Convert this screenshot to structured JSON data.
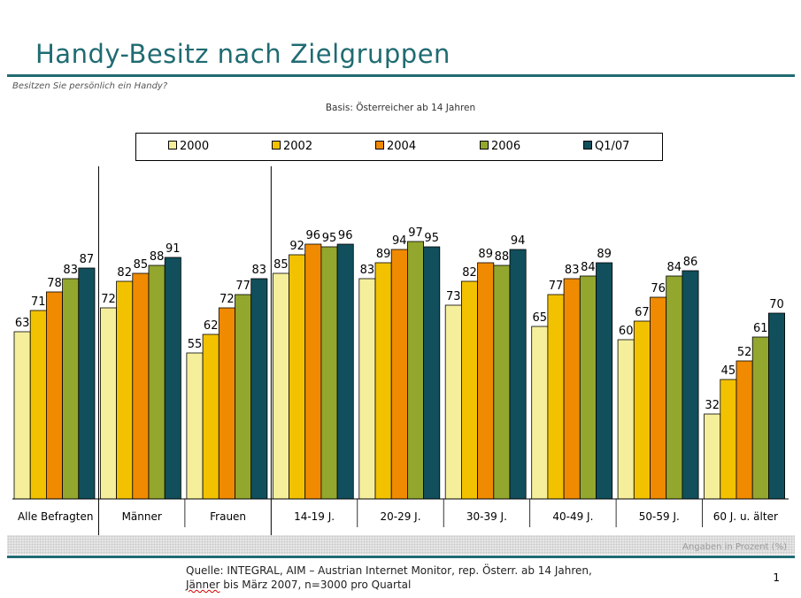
{
  "header": {
    "title": "Handy-Besitz nach Zielgruppen",
    "question": "Besitzen Sie persönlich ein Handy?",
    "basis": "Basis: Österreicher ab 14 Jahren"
  },
  "chart_data": {
    "type": "bar",
    "categories": [
      "Alle Befragten",
      "Männer",
      "Frauen",
      "14-19 J.",
      "20-29 J.",
      "30-39 J.",
      "40-49 J.",
      "50-59 J.",
      "60 J. u. älter"
    ],
    "series": [
      {
        "name": "2000",
        "color": "#f5ef9c",
        "values": [
          63,
          72,
          55,
          85,
          83,
          73,
          65,
          60,
          32
        ]
      },
      {
        "name": "2002",
        "color": "#f2c200",
        "values": [
          71,
          82,
          62,
          92,
          89,
          82,
          77,
          67,
          45
        ]
      },
      {
        "name": "2004",
        "color": "#f08a00",
        "values": [
          78,
          85,
          72,
          96,
          94,
          89,
          83,
          76,
          52
        ]
      },
      {
        "name": "2006",
        "color": "#93a62e",
        "values": [
          83,
          88,
          77,
          95,
          97,
          88,
          84,
          84,
          61
        ]
      },
      {
        "name": "Q1/07",
        "color": "#114f5c",
        "values": [
          87,
          91,
          83,
          96,
          95,
          94,
          89,
          86,
          70
        ]
      }
    ],
    "ylim": [
      0,
      100
    ],
    "legend_position": "top",
    "data_labels": true,
    "group_separators_after": [
      0,
      2
    ]
  },
  "footer": {
    "note": "Angaben in Prozent (%)",
    "source_line1": "Quelle: INTEGRAL, AIM – Austrian Internet Monitor, rep. Österr. ab 14 Jahren,",
    "source_line2_word": "Jänner",
    "source_line2_rest": " bis März 2007, n=3000 pro Quartal",
    "page_number": "1"
  }
}
